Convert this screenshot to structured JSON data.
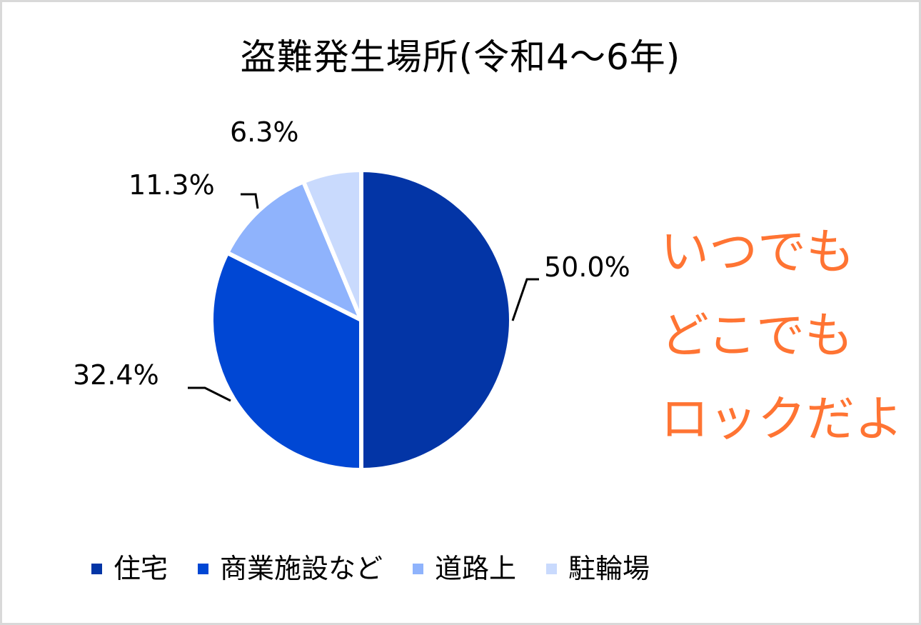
{
  "chart_data": {
    "type": "pie",
    "title": "盗難発生場所(令和4～6年)",
    "categories": [
      "住宅",
      "商業施設など",
      "道路上",
      "駐輪場"
    ],
    "values": [
      50.0,
      32.4,
      11.3,
      6.3
    ],
    "value_labels": [
      "50.0%",
      "32.4%",
      "11.3%",
      "6.3%"
    ],
    "colors": [
      "#0335a6",
      "#0047d4",
      "#8fb3fc",
      "#c9dafd"
    ],
    "start_angle_deg": 0,
    "direction": "clockwise",
    "legend_position": "bottom",
    "annotations": [
      "いつでも",
      "どこでも",
      "ロックだよ"
    ]
  },
  "callout": {
    "lines": [
      "いつでも",
      "どこでも",
      "ロックだよ"
    ],
    "color": "#ff7433"
  },
  "legend": {
    "items": [
      {
        "label": "住宅",
        "color": "#0335a6"
      },
      {
        "label": "商業施設など",
        "color": "#0047d4"
      },
      {
        "label": "道路上",
        "color": "#8fb3fc"
      },
      {
        "label": "駐輪場",
        "color": "#c9dafd"
      }
    ]
  }
}
